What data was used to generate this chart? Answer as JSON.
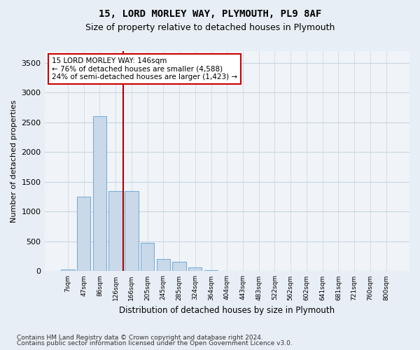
{
  "title": "15, LORD MORLEY WAY, PLYMOUTH, PL9 8AF",
  "subtitle": "Size of property relative to detached houses in Plymouth",
  "xlabel": "Distribution of detached houses by size in Plymouth",
  "ylabel": "Number of detached properties",
  "bar_color": "#c9d9ea",
  "bar_edge_color": "#7aaed6",
  "background_color": "#e8eef5",
  "plot_bg_color": "#f0f4f9",
  "categories": [
    "7sqm",
    "47sqm",
    "86sqm",
    "126sqm",
    "166sqm",
    "205sqm",
    "245sqm",
    "285sqm",
    "324sqm",
    "364sqm",
    "404sqm",
    "443sqm",
    "483sqm",
    "522sqm",
    "562sqm",
    "602sqm",
    "641sqm",
    "681sqm",
    "721sqm",
    "760sqm",
    "800sqm"
  ],
  "values": [
    30,
    1250,
    2600,
    1350,
    1350,
    480,
    200,
    155,
    60,
    20,
    5,
    2,
    1,
    0,
    0,
    0,
    0,
    0,
    0,
    0,
    0
  ],
  "ylim": [
    0,
    3700
  ],
  "yticks": [
    0,
    500,
    1000,
    1500,
    2000,
    2500,
    3000,
    3500
  ],
  "vline_x": 3.5,
  "annotation_title": "15 LORD MORLEY WAY: 146sqm",
  "annotation_line1": "← 76% of detached houses are smaller (4,588)",
  "annotation_line2": "24% of semi-detached houses are larger (1,423) →",
  "vline_color": "#aa0000",
  "annotation_box_facecolor": "#ffffff",
  "annotation_box_edgecolor": "#cc0000",
  "footer1": "Contains HM Land Registry data © Crown copyright and database right 2024.",
  "footer2": "Contains public sector information licensed under the Open Government Licence v3.0."
}
